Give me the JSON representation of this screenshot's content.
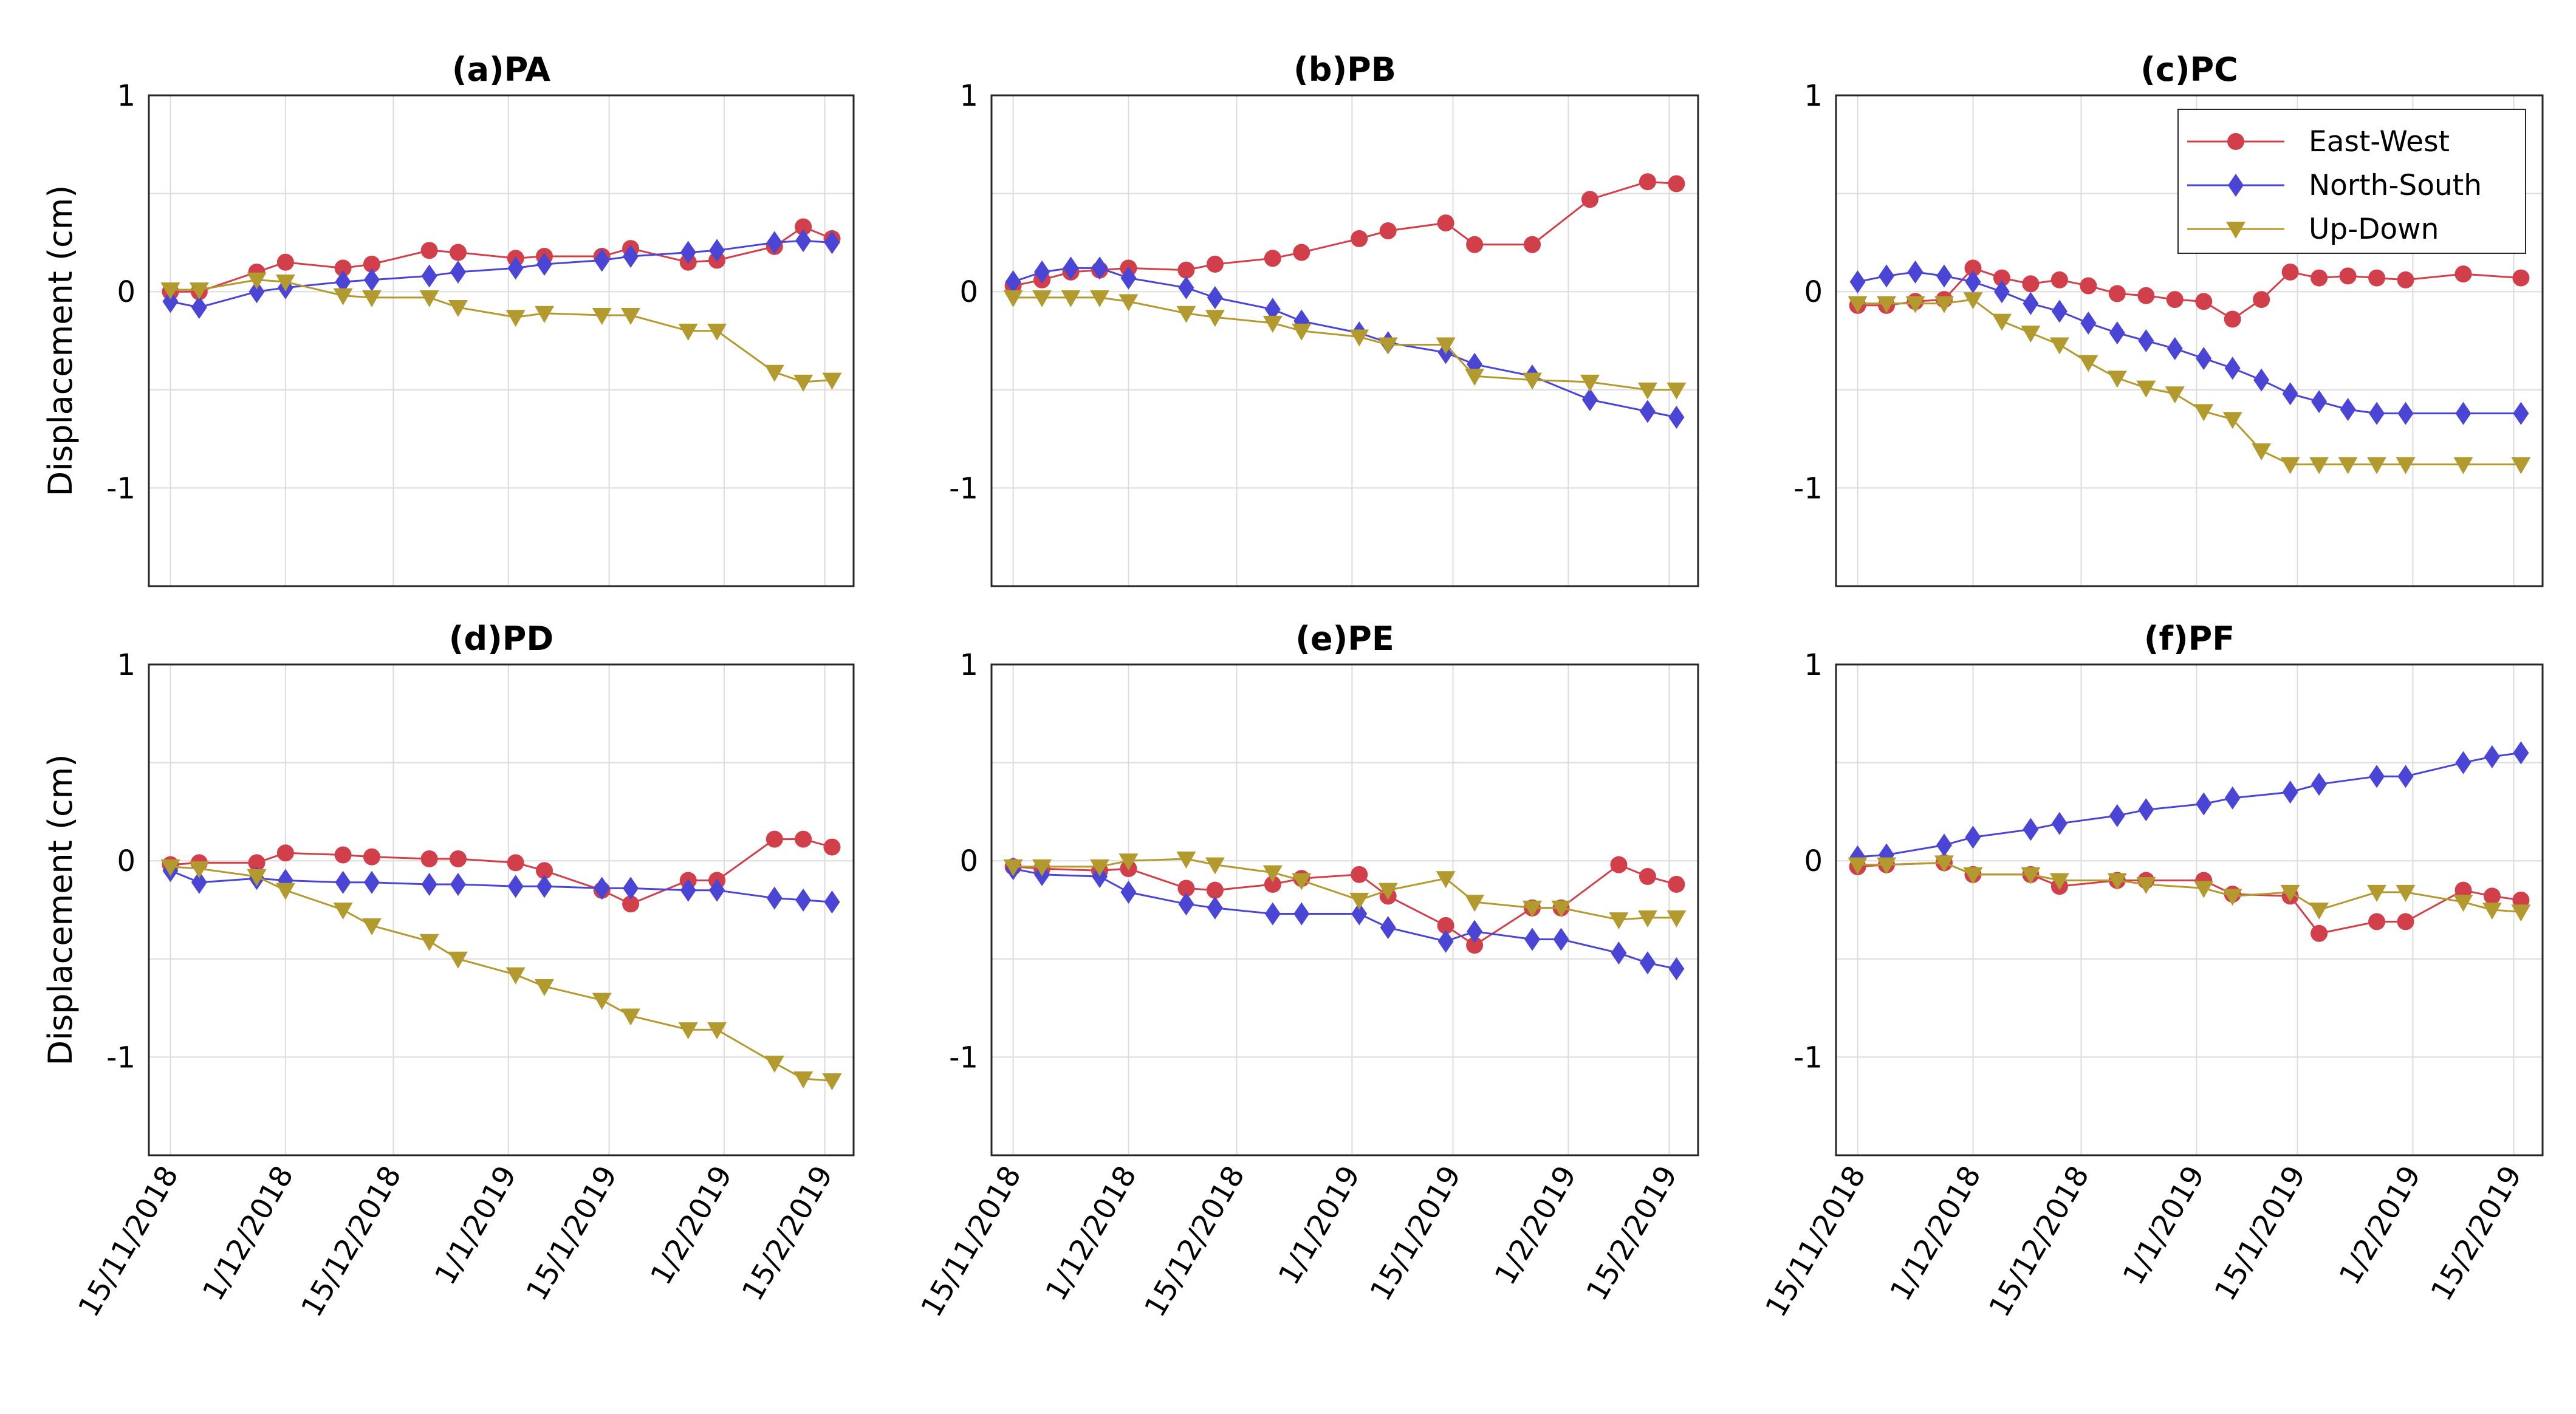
{
  "figure": {
    "ylabel": "Displacement (cm)",
    "xtick_labels": [
      "15/11/2018",
      "1/12/2018",
      "15/12/2018",
      "1/1/2019",
      "15/1/2019",
      "1/2/2019",
      "15/2/2019"
    ],
    "legend": [
      "East-West",
      "North-South",
      "Up-Down"
    ]
  },
  "colors": {
    "east_west": "#d1404a",
    "north_south": "#4b45d6",
    "up_down": "#b39a2e",
    "grid": "#dcdcdc",
    "axis": "#262626"
  },
  "chart_data": [
    {
      "type": "line",
      "title": "(a)PA",
      "xlabel": "",
      "ylabel": "Displacement (cm)",
      "x": [
        0,
        4,
        12,
        16,
        24,
        28,
        36,
        40,
        48,
        52,
        60,
        64,
        72,
        76,
        84,
        88,
        92
      ],
      "x_ticks": [
        0,
        16,
        31,
        47,
        61,
        77,
        91
      ],
      "ylim": [
        -1.5,
        1
      ],
      "yticks": [
        -1,
        0,
        1
      ],
      "grid": true,
      "series": [
        {
          "name": "East-West",
          "values": [
            0,
            0,
            0.1,
            0.15,
            0.12,
            0.14,
            0.21,
            0.2,
            0.17,
            0.18,
            0.18,
            0.22,
            0.15,
            0.16,
            0.23,
            0.33,
            0.27
          ]
        },
        {
          "name": "North-South",
          "values": [
            -0.05,
            -0.08,
            0,
            0.02,
            0.05,
            0.06,
            0.08,
            0.1,
            0.12,
            0.14,
            0.16,
            0.18,
            0.2,
            0.21,
            0.25,
            0.26,
            0.25
          ]
        },
        {
          "name": "Up-Down",
          "values": [
            0.01,
            0.01,
            0.06,
            0.05,
            -0.02,
            -0.03,
            -0.03,
            -0.08,
            -0.13,
            -0.11,
            -0.12,
            -0.12,
            -0.2,
            -0.2,
            -0.41,
            -0.46,
            -0.45
          ]
        }
      ]
    },
    {
      "type": "line",
      "title": "(b)PB",
      "xlabel": "",
      "ylabel": "",
      "x": [
        0,
        4,
        8,
        12,
        16,
        24,
        28,
        36,
        40,
        48,
        52,
        60,
        64,
        72,
        80,
        88,
        92
      ],
      "x_ticks": [
        0,
        16,
        31,
        47,
        61,
        77,
        91
      ],
      "ylim": [
        -1.5,
        1
      ],
      "yticks": [
        -1,
        0,
        1
      ],
      "grid": true,
      "series": [
        {
          "name": "East-West",
          "values": [
            0.03,
            0.06,
            0.1,
            0.11,
            0.12,
            0.11,
            0.14,
            0.17,
            0.2,
            0.27,
            0.31,
            0.35,
            0.24,
            0.24,
            0.47,
            0.56,
            0.55
          ]
        },
        {
          "name": "North-South",
          "values": [
            0.05,
            0.1,
            0.12,
            0.12,
            0.07,
            0.02,
            -0.03,
            -0.09,
            -0.15,
            -0.21,
            -0.26,
            -0.31,
            -0.37,
            -0.43,
            -0.55,
            -0.61,
            -0.64
          ]
        },
        {
          "name": "Up-Down",
          "values": [
            -0.03,
            -0.03,
            -0.03,
            -0.03,
            -0.05,
            -0.11,
            -0.13,
            -0.16,
            -0.2,
            -0.23,
            -0.27,
            -0.27,
            -0.43,
            -0.45,
            -0.46,
            -0.5,
            -0.5
          ]
        }
      ]
    },
    {
      "type": "line",
      "title": "(c)PC",
      "xlabel": "",
      "ylabel": "",
      "x": [
        0,
        4,
        8,
        12,
        16,
        20,
        24,
        28,
        32,
        36,
        40,
        44,
        48,
        52,
        56,
        60,
        64,
        68,
        72,
        76,
        84,
        92
      ],
      "x_ticks": [
        0,
        16,
        31,
        47,
        61,
        77,
        91
      ],
      "ylim": [
        -1.5,
        1
      ],
      "yticks": [
        -1,
        0,
        1
      ],
      "grid": true,
      "series": [
        {
          "name": "East-West",
          "values": [
            -0.07,
            -0.07,
            -0.05,
            -0.04,
            0.12,
            0.07,
            0.04,
            0.06,
            0.03,
            -0.01,
            -0.02,
            -0.04,
            -0.05,
            -0.14,
            -0.04,
            0.1,
            0.07,
            0.08,
            0.07,
            0.06,
            0.09,
            0.07
          ]
        },
        {
          "name": "North-South",
          "values": [
            0.05,
            0.08,
            0.1,
            0.08,
            0.05,
            0,
            -0.06,
            -0.1,
            -0.16,
            -0.21,
            -0.25,
            -0.29,
            -0.34,
            -0.39,
            -0.45,
            -0.52,
            -0.56,
            -0.6,
            -0.62,
            -0.62,
            -0.62,
            -0.62
          ]
        },
        {
          "name": "Up-Down",
          "values": [
            -0.06,
            -0.06,
            -0.06,
            -0.06,
            -0.04,
            -0.15,
            -0.21,
            -0.27,
            -0.36,
            -0.44,
            -0.49,
            -0.52,
            -0.61,
            -0.65,
            -0.81,
            -0.88,
            -0.88,
            -0.88,
            -0.88,
            -0.88,
            -0.88,
            -0.88
          ]
        }
      ]
    },
    {
      "type": "line",
      "title": "(d)PD",
      "xlabel": "",
      "ylabel": "Displacement (cm)",
      "x": [
        0,
        4,
        12,
        16,
        24,
        28,
        36,
        40,
        48,
        52,
        60,
        64,
        72,
        76,
        84,
        88,
        92
      ],
      "x_ticks": [
        0,
        16,
        31,
        47,
        61,
        77,
        91
      ],
      "ylim": [
        -1.5,
        1
      ],
      "yticks": [
        -1,
        0,
        1
      ],
      "grid": true,
      "series": [
        {
          "name": "East-West",
          "values": [
            -0.02,
            -0.01,
            -0.01,
            0.04,
            0.03,
            0.02,
            0.01,
            0.01,
            -0.01,
            -0.05,
            -0.15,
            -0.22,
            -0.1,
            -0.1,
            0.11,
            0.11,
            0.07
          ]
        },
        {
          "name": "North-South",
          "values": [
            -0.05,
            -0.11,
            -0.09,
            -0.1,
            -0.11,
            -0.11,
            -0.12,
            -0.12,
            -0.13,
            -0.13,
            -0.14,
            -0.14,
            -0.15,
            -0.15,
            -0.19,
            -0.2,
            -0.21
          ]
        },
        {
          "name": "Up-Down",
          "values": [
            -0.03,
            -0.04,
            -0.08,
            -0.15,
            -0.25,
            -0.33,
            -0.41,
            -0.5,
            -0.58,
            -0.64,
            -0.71,
            -0.79,
            -0.86,
            -0.86,
            -1.03,
            -1.11,
            -1.12
          ]
        }
      ]
    },
    {
      "type": "line",
      "title": "(e)PE",
      "xlabel": "",
      "ylabel": "",
      "x": [
        0,
        4,
        12,
        16,
        24,
        28,
        36,
        40,
        48,
        52,
        60,
        64,
        72,
        76,
        84,
        88,
        92
      ],
      "x_ticks": [
        0,
        16,
        31,
        47,
        61,
        77,
        91
      ],
      "ylim": [
        -1.5,
        1
      ],
      "yticks": [
        -1,
        0,
        1
      ],
      "grid": true,
      "series": [
        {
          "name": "East-West",
          "values": [
            -0.03,
            -0.04,
            -0.05,
            -0.04,
            -0.14,
            -0.15,
            -0.12,
            -0.09,
            -0.07,
            -0.18,
            -0.33,
            -0.43,
            -0.24,
            -0.24,
            -0.02,
            -0.08,
            -0.12
          ]
        },
        {
          "name": "North-South",
          "values": [
            -0.04,
            -0.07,
            -0.08,
            -0.16,
            -0.22,
            -0.24,
            -0.27,
            -0.27,
            -0.27,
            -0.34,
            -0.41,
            -0.36,
            -0.4,
            -0.4,
            -0.47,
            -0.52,
            -0.55
          ]
        },
        {
          "name": "Up-Down",
          "values": [
            -0.03,
            -0.03,
            -0.03,
            0,
            0.01,
            -0.02,
            -0.06,
            -0.1,
            -0.2,
            -0.15,
            -0.09,
            -0.21,
            -0.24,
            -0.24,
            -0.3,
            -0.29,
            -0.29
          ]
        }
      ]
    },
    {
      "type": "line",
      "title": "(f)PF",
      "xlabel": "",
      "ylabel": "",
      "x": [
        0,
        4,
        12,
        16,
        24,
        28,
        36,
        40,
        48,
        52,
        60,
        64,
        72,
        76,
        84,
        88,
        92
      ],
      "x_ticks": [
        0,
        16,
        31,
        47,
        61,
        77,
        91
      ],
      "ylim": [
        -1.5,
        1
      ],
      "yticks": [
        -1,
        0,
        1
      ],
      "grid": true,
      "series": [
        {
          "name": "East-West",
          "values": [
            -0.03,
            -0.02,
            -0.01,
            -0.07,
            -0.07,
            -0.13,
            -0.1,
            -0.1,
            -0.1,
            -0.17,
            -0.18,
            -0.37,
            -0.31,
            -0.31,
            -0.15,
            -0.18,
            -0.2
          ]
        },
        {
          "name": "North-South",
          "values": [
            0.02,
            0.03,
            0.08,
            0.12,
            0.16,
            0.19,
            0.23,
            0.26,
            0.29,
            0.32,
            0.35,
            0.39,
            0.43,
            0.43,
            0.5,
            0.53,
            0.55
          ]
        },
        {
          "name": "Up-Down",
          "values": [
            -0.02,
            -0.02,
            -0.01,
            -0.07,
            -0.07,
            -0.1,
            -0.1,
            -0.12,
            -0.14,
            -0.18,
            -0.16,
            -0.25,
            -0.16,
            -0.16,
            -0.21,
            -0.25,
            -0.26
          ]
        }
      ]
    }
  ]
}
